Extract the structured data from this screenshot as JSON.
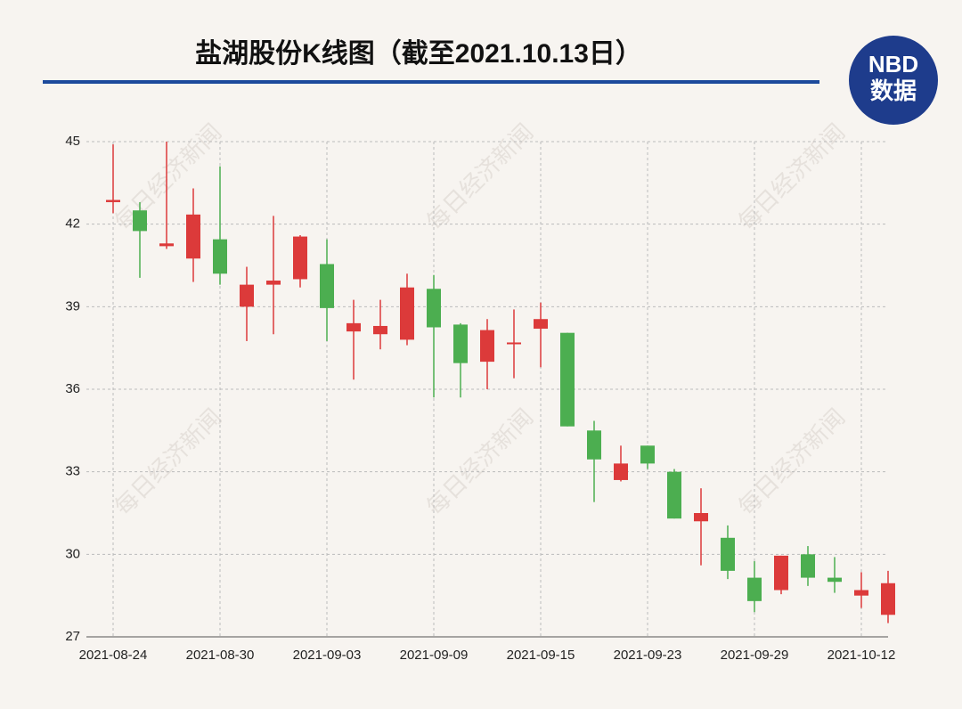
{
  "chart_data": {
    "type": "candlestick",
    "title": "盐湖股份K线图（截至2021.10.13日）",
    "logo": [
      "NBD",
      "数据"
    ],
    "watermark": "每日经济新闻",
    "categories": [
      "2021-08-24",
      null,
      null,
      null,
      "2021-08-30",
      null,
      null,
      null,
      "2021-09-03",
      null,
      null,
      null,
      "2021-09-09",
      null,
      null,
      null,
      "2021-09-15",
      null,
      null,
      null,
      "2021-09-23",
      null,
      null,
      null,
      "2021-09-29",
      null,
      null,
      null,
      "2021-10-12",
      null
    ],
    "open": [
      42.8,
      42.5,
      41.2,
      40.75,
      41.45,
      39.0,
      39.8,
      40.0,
      40.55,
      38.1,
      38.0,
      37.8,
      39.65,
      38.35,
      37.0,
      37.65,
      38.2,
      38.05,
      34.5,
      32.7,
      33.95,
      33.0,
      31.2,
      30.6,
      29.15,
      28.7,
      30.0,
      29.15,
      28.5,
      27.8
    ],
    "high": [
      44.9,
      42.8,
      45.0,
      43.3,
      44.1,
      40.45,
      42.3,
      41.6,
      41.45,
      39.25,
      39.25,
      40.2,
      40.15,
      38.4,
      38.55,
      38.9,
      39.15,
      38.05,
      34.85,
      33.95,
      33.95,
      33.1,
      32.4,
      31.05,
      29.75,
      29.95,
      30.3,
      29.9,
      29.35,
      29.4
    ],
    "low": [
      42.4,
      40.05,
      41.1,
      39.9,
      39.8,
      37.75,
      38.0,
      39.7,
      37.75,
      36.35,
      37.45,
      37.6,
      35.7,
      35.7,
      36.0,
      36.4,
      36.8,
      34.65,
      31.9,
      32.65,
      33.1,
      31.3,
      29.6,
      29.1,
      27.9,
      28.55,
      28.85,
      28.6,
      28.05,
      27.5
    ],
    "close": [
      42.88,
      41.75,
      41.3,
      42.35,
      40.2,
      39.8,
      39.95,
      41.55,
      38.95,
      38.4,
      38.3,
      39.7,
      38.25,
      36.95,
      38.15,
      37.7,
      38.55,
      34.65,
      33.45,
      33.3,
      33.3,
      31.3,
      31.5,
      29.4,
      28.3,
      29.95,
      29.15,
      29.0,
      28.7,
      28.95
    ],
    "up_color": "#dc3a3a",
    "down_color": "#4cae50",
    "ylim": [
      27,
      45
    ],
    "yticks": [
      27,
      30,
      33,
      36,
      39,
      42,
      45
    ],
    "grid": true
  }
}
